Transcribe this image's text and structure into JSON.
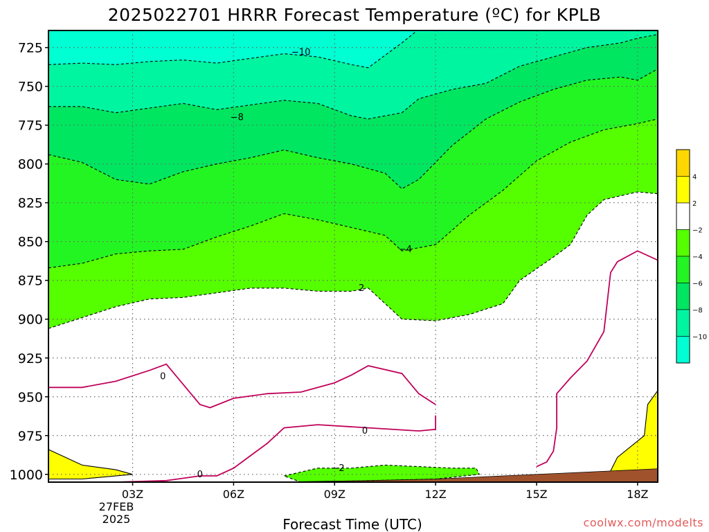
{
  "title": "2025022701 HRRR Forecast Temperature (ºC) for KPLB",
  "xlabel": "Forecast Time (UTC)",
  "watermark": "coolwx.com/modelts",
  "date_line1": "27FEB",
  "date_line2": "2025",
  "colors": {
    "ground": "#a0522d",
    "c_le_m10": "#00ffd2",
    "c_m10_m8": "#00f5a0",
    "c_m8_m6": "#00e660",
    "c_m6_m4": "#23f523",
    "c_m4_m2": "#55ff00",
    "c_m2_2": "#ffffff",
    "c_2_4": "#ffff00",
    "c_ge_4": "#ffd700",
    "zero_line": "#c0005a",
    "dashed_line": "#000000"
  },
  "colorbar": {
    "ticks": [
      "4",
      "2",
      "−2",
      "−4",
      "−6",
      "−8",
      "−10"
    ],
    "bins": [
      "c_ge_4",
      "c_2_4",
      "c_m2_2",
      "c_m4_m2",
      "c_m6_m4",
      "c_m8_m6",
      "c_m10_m8",
      "c_le_m10"
    ]
  },
  "chart_data": {
    "type": "heatmap",
    "title": "2025022701 HRRR Forecast Temperature (ºC) for KPLB",
    "xlabel": "Forecast Time (UTC)",
    "ylabel": "",
    "xlim_hours": [
      0.5,
      18.6
    ],
    "ylim_hpa": [
      1005,
      714
    ],
    "ytick_values": [
      725,
      750,
      775,
      800,
      825,
      850,
      875,
      900,
      925,
      950,
      975,
      1000
    ],
    "ytick_labels": [
      "725",
      "750",
      "775",
      "800",
      "825",
      "850",
      "875",
      "900",
      "925",
      "950",
      "975",
      "1000"
    ],
    "xtick_hours": [
      3,
      6,
      9,
      12,
      15,
      18
    ],
    "xtick_labels": [
      "03Z",
      "06Z",
      "09Z",
      "12Z",
      "15Z",
      "18Z"
    ],
    "contour_labels": [
      {
        "text": "−10",
        "hour": 8.0,
        "hpa": 728
      },
      {
        "text": "−8",
        "hour": 6.1,
        "hpa": 770
      },
      {
        "text": "−4",
        "hour": 11.1,
        "hpa": 855
      },
      {
        "text": "2",
        "hour": 9.8,
        "hpa": 880
      },
      {
        "text": "0",
        "hour": 3.9,
        "hpa": 937
      },
      {
        "text": "0",
        "hour": 9.9,
        "hpa": 972
      },
      {
        "text": "0",
        "hour": 5.0,
        "hpa": 1000
      },
      {
        "text": "−2",
        "hour": 9.1,
        "hpa": 996
      }
    ],
    "isotherms": [
      {
        "level": -10,
        "points": [
          [
            0.5,
            736
          ],
          [
            1.5,
            735
          ],
          [
            2.5,
            736
          ],
          [
            3.5,
            734
          ],
          [
            4.5,
            733
          ],
          [
            5.5,
            735
          ],
          [
            6.5,
            732
          ],
          [
            7.5,
            729
          ],
          [
            8.5,
            731
          ],
          [
            9.5,
            736
          ],
          [
            10.0,
            738
          ],
          [
            10.5,
            730
          ],
          [
            11.0,
            722
          ],
          [
            11.4,
            715
          ]
        ]
      },
      {
        "level": -8,
        "points": [
          [
            0.5,
            763
          ],
          [
            1.5,
            763
          ],
          [
            2.5,
            767
          ],
          [
            3.5,
            764
          ],
          [
            4.5,
            761
          ],
          [
            5.5,
            765
          ],
          [
            6.5,
            762
          ],
          [
            7.5,
            759
          ],
          [
            8.5,
            761
          ],
          [
            9.5,
            769
          ],
          [
            10.0,
            771
          ],
          [
            11.0,
            767
          ],
          [
            11.5,
            758
          ],
          [
            12.5,
            752
          ],
          [
            13.5,
            748
          ],
          [
            14.5,
            737
          ],
          [
            15.5,
            731
          ],
          [
            16.5,
            725
          ],
          [
            17.5,
            722
          ],
          [
            18.0,
            719
          ],
          [
            19.0,
            715
          ]
        ]
      },
      {
        "level": -6,
        "points": [
          [
            0.5,
            794
          ],
          [
            1.5,
            799
          ],
          [
            2.5,
            810
          ],
          [
            3.5,
            813
          ],
          [
            4.5,
            805
          ],
          [
            5.5,
            800
          ],
          [
            6.5,
            796
          ],
          [
            7.5,
            791
          ],
          [
            8.5,
            796
          ],
          [
            9.5,
            800
          ],
          [
            10.5,
            806
          ],
          [
            11.0,
            816
          ],
          [
            11.5,
            810
          ],
          [
            12.5,
            788
          ],
          [
            13.5,
            771
          ],
          [
            14.5,
            760
          ],
          [
            15.5,
            752
          ],
          [
            16.5,
            746
          ],
          [
            17.5,
            744
          ],
          [
            18.0,
            746
          ],
          [
            19.0,
            734
          ]
        ]
      },
      {
        "level": -4,
        "points": [
          [
            0.5,
            867
          ],
          [
            1.5,
            864
          ],
          [
            2.5,
            858
          ],
          [
            3.5,
            856
          ],
          [
            4.5,
            855
          ],
          [
            5.5,
            847
          ],
          [
            6.5,
            840
          ],
          [
            7.5,
            832
          ],
          [
            8.5,
            836
          ],
          [
            9.5,
            841
          ],
          [
            10.5,
            846
          ],
          [
            11.0,
            856
          ],
          [
            12.0,
            852
          ],
          [
            13.0,
            833
          ],
          [
            14.0,
            817
          ],
          [
            15.0,
            798
          ],
          [
            16.0,
            786
          ],
          [
            17.0,
            778
          ],
          [
            18.0,
            774
          ],
          [
            19.0,
            769
          ]
        ]
      },
      {
        "level": -2,
        "points": [
          [
            0.5,
            906
          ],
          [
            1.5,
            899
          ],
          [
            2.5,
            892
          ],
          [
            3.5,
            887
          ],
          [
            4.5,
            886
          ],
          [
            5.5,
            883
          ],
          [
            6.5,
            880
          ],
          [
            7.5,
            880
          ],
          [
            8.5,
            882
          ],
          [
            9.5,
            882
          ],
          [
            10.0,
            880
          ],
          [
            10.5,
            890
          ],
          [
            11.0,
            900
          ],
          [
            12.0,
            901
          ],
          [
            13.0,
            897
          ],
          [
            14.0,
            890
          ],
          [
            14.5,
            875
          ],
          [
            15.5,
            860
          ],
          [
            16.0,
            852
          ],
          [
            16.5,
            833
          ],
          [
            17.0,
            823
          ],
          [
            18.0,
            818
          ],
          [
            19.0,
            820
          ]
        ]
      },
      {
        "level": 0,
        "segment": 1,
        "points": [
          [
            0.5,
            944
          ],
          [
            1.5,
            944
          ],
          [
            2.5,
            940
          ],
          [
            3.5,
            933
          ],
          [
            4.0,
            929
          ],
          [
            4.5,
            942
          ],
          [
            5.0,
            955
          ],
          [
            5.3,
            957
          ],
          [
            6.0,
            951
          ],
          [
            7.0,
            948
          ],
          [
            8.0,
            947
          ],
          [
            9.0,
            941
          ],
          [
            9.5,
            936
          ],
          [
            10.0,
            930
          ],
          [
            11.0,
            935
          ],
          [
            11.5,
            948
          ],
          [
            12.0,
            955
          ]
        ]
      },
      {
        "level": 0,
        "segment": 2,
        "points": [
          [
            0.5,
            1005
          ],
          [
            2.5,
            1005
          ],
          [
            4.0,
            1004
          ],
          [
            5.0,
            1001
          ],
          [
            5.5,
            1001
          ],
          [
            6.0,
            996
          ],
          [
            6.5,
            988
          ],
          [
            7.0,
            980
          ],
          [
            7.5,
            970
          ],
          [
            8.5,
            968
          ],
          [
            10.0,
            970
          ],
          [
            11.5,
            972
          ],
          [
            12.0,
            971
          ],
          [
            12.0,
            962
          ]
        ]
      },
      {
        "level": 0,
        "segment": 3,
        "points": [
          [
            15.0,
            995
          ],
          [
            15.3,
            992
          ],
          [
            15.5,
            985
          ],
          [
            15.6,
            970
          ],
          [
            15.6,
            948
          ],
          [
            16.0,
            938
          ],
          [
            16.5,
            927
          ],
          [
            17.0,
            908
          ],
          [
            17.2,
            870
          ],
          [
            17.4,
            863
          ],
          [
            18.0,
            856
          ],
          [
            18.6,
            862
          ],
          [
            19.0,
            870
          ]
        ]
      },
      {
        "level": 2,
        "segment": 1,
        "points": [
          [
            0.5,
            984
          ],
          [
            1.5,
            994
          ],
          [
            2.5,
            997
          ],
          [
            3.0,
            1000
          ],
          [
            1.5,
            1003
          ],
          [
            0.5,
            1003
          ]
        ]
      },
      {
        "level": 2,
        "segment": 2,
        "points": [
          [
            17.1,
            1002
          ],
          [
            17.4,
            989
          ],
          [
            18.2,
            975
          ],
          [
            18.3,
            955
          ],
          [
            18.8,
            940
          ],
          [
            19.0,
            930
          ],
          [
            19.0,
            1002
          ]
        ]
      },
      {
        "level": -2,
        "segment": 2,
        "points": [
          [
            7.5,
            1001
          ],
          [
            8.5,
            996
          ],
          [
            9.5,
            996
          ],
          [
            10.5,
            994
          ],
          [
            11.5,
            995
          ],
          [
            12.5,
            996
          ],
          [
            13.2,
            996
          ],
          [
            13.3,
            1000
          ],
          [
            12.0,
            1003
          ],
          [
            10.0,
            1004
          ],
          [
            8.0,
            1005
          ],
          [
            7.5,
            1001
          ]
        ]
      }
    ],
    "surface_pressure_hpa": [
      [
        0.5,
        1006
      ],
      [
        4.0,
        1006
      ],
      [
        7.0,
        1005
      ],
      [
        10.0,
        1004
      ],
      [
        12.0,
        1003
      ],
      [
        14.0,
        1001
      ],
      [
        16.0,
        999
      ],
      [
        18.0,
        997
      ],
      [
        19.0,
        996
      ]
    ]
  }
}
